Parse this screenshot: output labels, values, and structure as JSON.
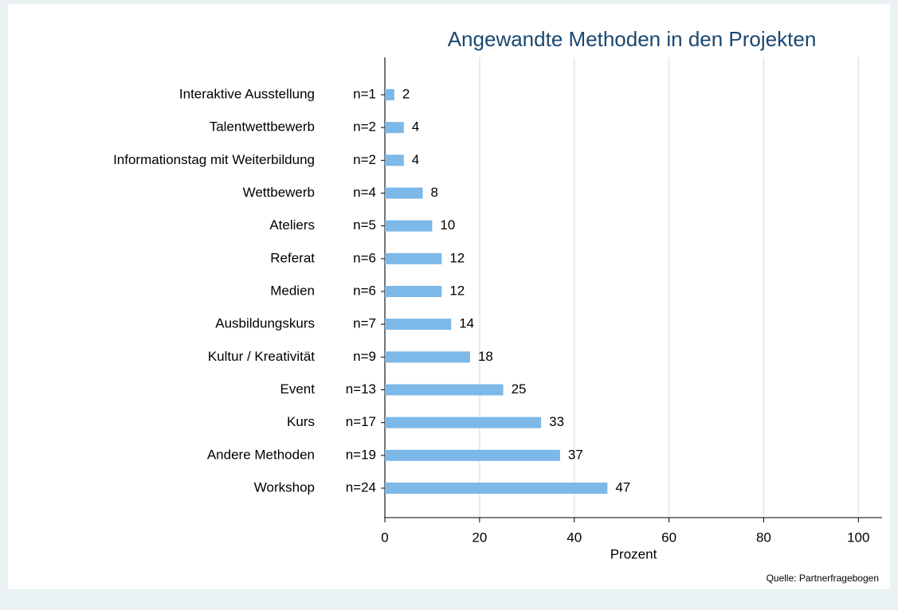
{
  "chart_data": {
    "type": "barh",
    "title": "Angewandte Methoden in den Projekten",
    "x_label": "Prozent",
    "source": "Quelle: Partnerfragebogen",
    "categories": [
      "Interaktive Ausstellung",
      "Talentwettbewerb",
      "Informationstag mit Weiterbildung",
      "Wettbewerb",
      "Ateliers",
      "Referat",
      "Medien",
      "Ausbildungskurs",
      "Kultur / Kreativität",
      "Event",
      "Kurs",
      "Andere Methoden",
      "Workshop"
    ],
    "n_labels": [
      "n=1",
      "n=2",
      "n=2",
      "n=4",
      "n=5",
      "n=6",
      "n=6",
      "n=7",
      "n=9",
      "n=13",
      "n=17",
      "n=19",
      "n=24"
    ],
    "values": [
      2,
      4,
      4,
      8,
      10,
      12,
      12,
      14,
      18,
      25,
      33,
      37,
      47
    ],
    "color": "#7cb8e8",
    "xlim": [
      0,
      105
    ],
    "xticks": [
      0,
      20,
      40,
      60,
      80,
      100
    ],
    "grid": true
  }
}
